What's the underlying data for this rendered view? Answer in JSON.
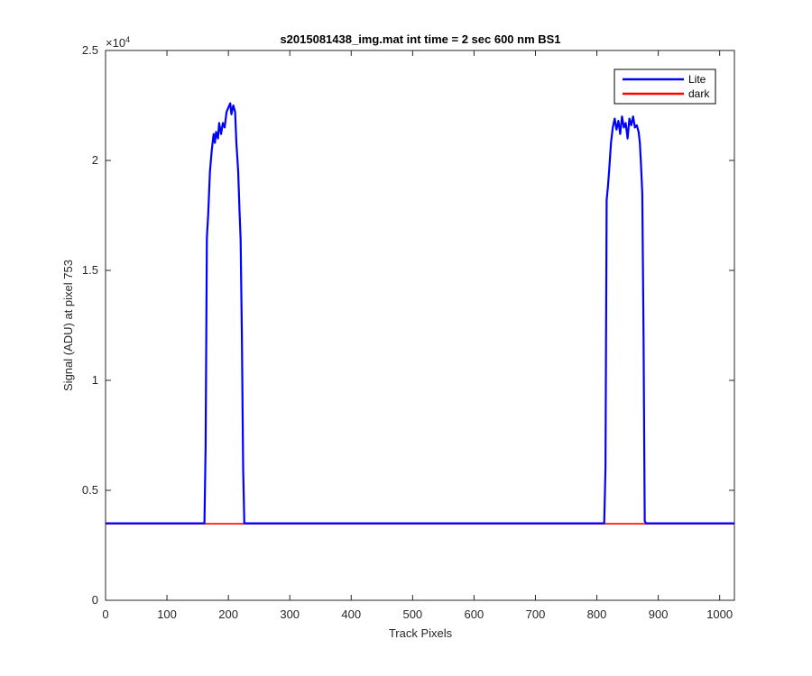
{
  "chart_data": {
    "type": "line",
    "title": "s2015081438_img.mat int time = 2 sec  600 nm BS1",
    "xlabel": "Track Pixels",
    "ylabel": "Signal (ADU) at pixel 753",
    "y_exponent_label": "×10",
    "y_exponent_power": "4",
    "xlim": [
      0,
      1024
    ],
    "ylim": [
      0,
      25000
    ],
    "x_ticks": [
      0,
      100,
      200,
      300,
      400,
      500,
      600,
      700,
      800,
      900,
      1000
    ],
    "x_tick_labels": [
      "0",
      "100",
      "200",
      "300",
      "400",
      "500",
      "600",
      "700",
      "800",
      "900",
      "1000"
    ],
    "y_ticks": [
      0,
      5000,
      10000,
      15000,
      20000,
      25000
    ],
    "y_tick_labels": [
      "0",
      "0.5",
      "1",
      "1.5",
      "2",
      "2.5"
    ],
    "grid": false,
    "legend_position": "top-right",
    "series": [
      {
        "name": "Lite",
        "color": "#0000ff",
        "x": [
          0,
          155,
          161,
          163,
          165,
          167,
          170,
          173,
          176,
          178,
          180,
          183,
          185,
          188,
          191,
          194,
          197,
          200,
          203,
          205,
          208,
          211,
          213,
          216,
          218,
          220,
          222,
          224,
          226,
          228,
          230,
          260,
          400,
          600,
          800,
          812,
          814,
          816,
          818,
          820,
          823,
          826,
          829,
          832,
          835,
          838,
          841,
          844,
          847,
          850,
          853,
          856,
          859,
          862,
          865,
          868,
          870,
          872,
          874,
          876,
          878,
          880,
          1024
        ],
        "y": [
          3500,
          3500,
          3500,
          7000,
          16500,
          17500,
          19500,
          20500,
          21200,
          20800,
          21300,
          21000,
          21700,
          21200,
          21700,
          21500,
          22200,
          22400,
          22600,
          22100,
          22500,
          22200,
          20800,
          19500,
          17800,
          16400,
          12000,
          6000,
          3500,
          3500,
          3500,
          3500,
          3500,
          3500,
          3500,
          3500,
          6000,
          18200,
          18800,
          19500,
          20800,
          21500,
          21900,
          21400,
          21800,
          21200,
          22000,
          21500,
          21700,
          21000,
          21900,
          21600,
          22000,
          21500,
          21600,
          21300,
          20800,
          19800,
          18500,
          12000,
          3600,
          3500,
          3500
        ]
      },
      {
        "name": "dark",
        "color": "#ff0000",
        "x": [
          0,
          1024
        ],
        "y": [
          3480,
          3480
        ]
      }
    ]
  }
}
